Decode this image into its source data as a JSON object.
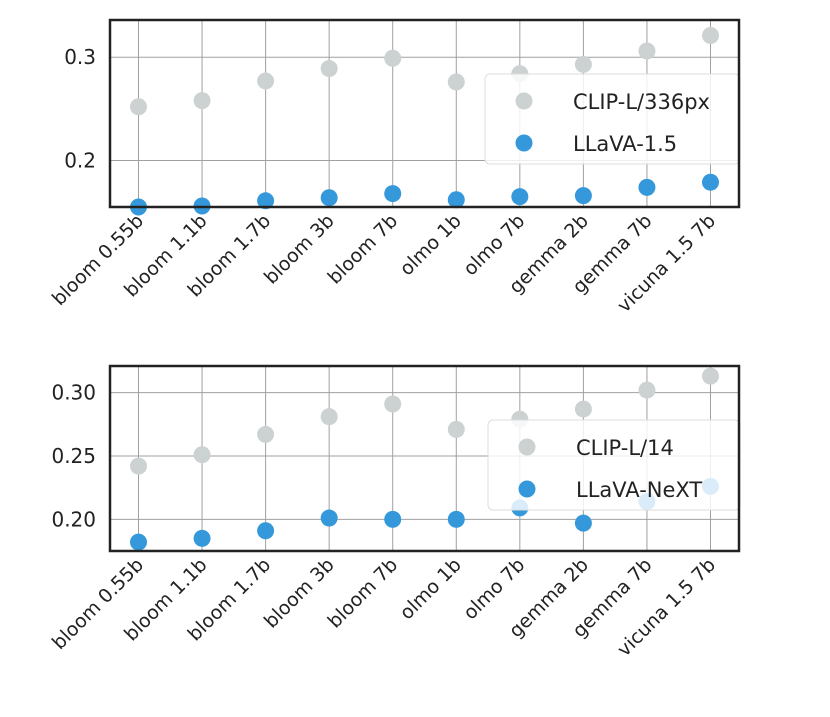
{
  "colors": {
    "gray_series": "#ccd1d1",
    "blue_series": "#3498db",
    "grid": "#a0a0a0",
    "frame": "#222222",
    "legend_bg": "#ffffff",
    "legend_edge": "#dddddd"
  },
  "chart_data": [
    {
      "type": "scatter",
      "categories": [
        "bloom 0.55b",
        "bloom 1.1b",
        "bloom 1.7b",
        "bloom 3b",
        "bloom 7b",
        "olmo 1b",
        "olmo 7b",
        "gemma 2b",
        "gemma 7b",
        "vicuna 1.5 7b"
      ],
      "series": [
        {
          "name": "CLIP-L/336px",
          "color": "#ccd1d1",
          "values": [
            0.252,
            0.258,
            0.277,
            0.289,
            0.299,
            0.276,
            0.284,
            0.293,
            0.306,
            0.321
          ]
        },
        {
          "name": "LLaVA-1.5",
          "color": "#3498db",
          "values": [
            0.155,
            0.156,
            0.161,
            0.164,
            0.168,
            0.162,
            0.165,
            0.166,
            0.174,
            0.179
          ]
        }
      ],
      "ylim": [
        0.155,
        0.336
      ],
      "yticks": [
        0.2,
        0.3
      ],
      "ytick_labels": [
        "0.2",
        "0.3"
      ],
      "title": "",
      "xlabel": "",
      "ylabel": "",
      "grid": true,
      "legend": "right"
    },
    {
      "type": "scatter",
      "categories": [
        "bloom 0.55b",
        "bloom 1.1b",
        "bloom 1.7b",
        "bloom 3b",
        "bloom 7b",
        "olmo 1b",
        "olmo 7b",
        "gemma 2b",
        "gemma 7b",
        "vicuna 1.5 7b"
      ],
      "series": [
        {
          "name": "CLIP-L/14",
          "color": "#ccd1d1",
          "values": [
            0.242,
            0.251,
            0.267,
            0.281,
            0.291,
            0.271,
            0.279,
            0.287,
            0.302,
            0.313
          ]
        },
        {
          "name": "LLaVA-NeXT",
          "color": "#3498db",
          "values": [
            0.182,
            0.185,
            0.191,
            0.201,
            0.2,
            0.2,
            0.209,
            0.197,
            0.214,
            0.226
          ]
        }
      ],
      "ylim": [
        0.175,
        0.321
      ],
      "yticks": [
        0.2,
        0.25,
        0.3
      ],
      "ytick_labels": [
        "0.20",
        "0.25",
        "0.30"
      ],
      "title": "",
      "xlabel": "",
      "ylabel": "",
      "grid": true,
      "legend": "right"
    }
  ]
}
